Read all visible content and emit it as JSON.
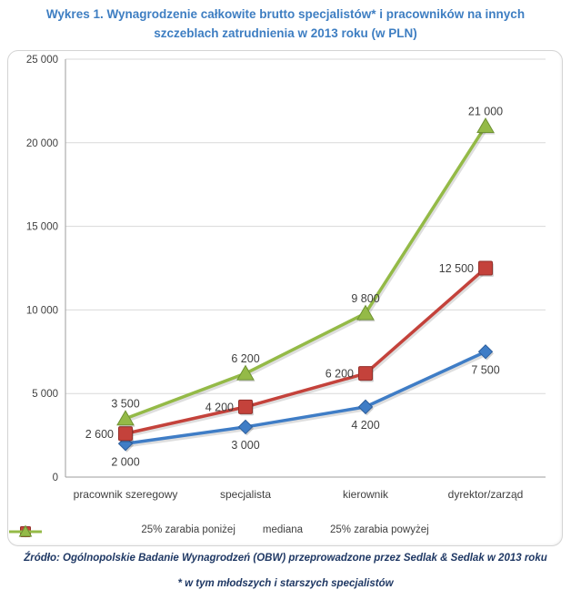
{
  "title": {
    "lines": [
      "Wykres 1. Wynagrodzenie całkowite brutto specjalistów* i pracowników na innych",
      "szczeblach zatrudnienia w 2013 roku (w PLN)"
    ]
  },
  "colors": {
    "title": "#3E7EC2",
    "footer": "#1F3864",
    "axis_text": "#3F3F3F",
    "gridline": "#D9D9D9",
    "axis_line": "#9E9E9E",
    "box_border": "#D4D4D4",
    "series_blue": "#3F7DC6",
    "series_red": "#C4423B",
    "series_green": "#94BA47"
  },
  "chart_data": {
    "type": "line",
    "categories": [
      "pracownik szeregowy",
      "specjalista",
      "kierownik",
      "dyrektor/zarząd"
    ],
    "series": [
      {
        "name": "25% zarabia poniżej",
        "values": [
          2000,
          3000,
          4200,
          7500
        ],
        "color": "#3F7DC6",
        "edge": "#2D5E9C",
        "marker": "diamond",
        "label_position": "below"
      },
      {
        "name": "mediana",
        "values": [
          2600,
          4200,
          6200,
          12500
        ],
        "color": "#C4423B",
        "edge": "#932F2A",
        "marker": "square",
        "label_position": "left"
      },
      {
        "name": "25% zarabia powyżej",
        "values": [
          3500,
          6200,
          9800,
          21000
        ],
        "color": "#94BA47",
        "edge": "#6E9233",
        "marker": "triangle",
        "label_position": "above"
      }
    ],
    "data_labels": [
      [
        "2 000",
        "3 000",
        "4 200",
        "7 500"
      ],
      [
        "2 600",
        "4 200",
        "6 200",
        "12 500"
      ],
      [
        "3 500",
        "6 200",
        "9 800",
        "21 000"
      ]
    ],
    "ylim": [
      0,
      25000
    ],
    "ytick_step": 5000,
    "ytick_labels": [
      "0",
      "5 000",
      "10 000",
      "15 000",
      "20 000",
      "25 000"
    ],
    "grid": true,
    "legend_position": "bottom"
  },
  "footer": {
    "source": "Źródło: Ogólnopolskie Badanie Wynagrodzeń (OBW) przeprowadzone przez Sedlak & Sedlak w 2013 roku",
    "note": "* w tym młodszych  i starszych  specjalistów"
  }
}
